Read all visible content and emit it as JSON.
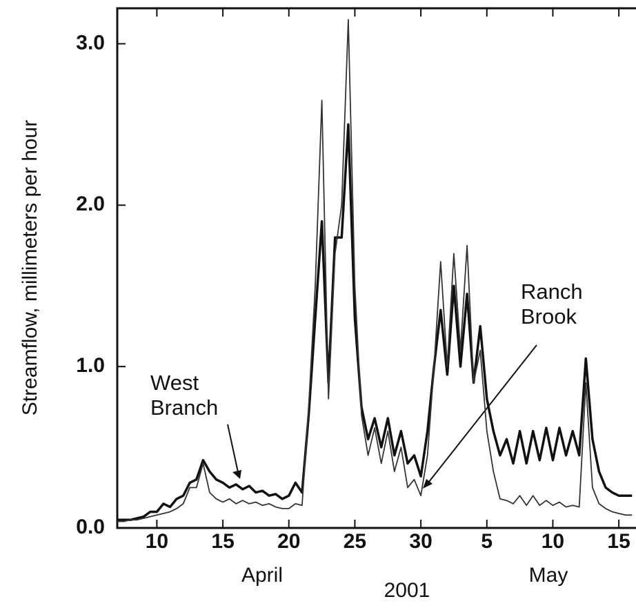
{
  "chart_data": {
    "type": "line",
    "y_label": "Streamflow, millimeters per hour",
    "x_group_labels": [
      "April",
      "May"
    ],
    "x_year_label": "2001",
    "x": [
      7,
      7.5,
      8,
      8.5,
      9,
      9.5,
      10,
      10.5,
      11,
      11.5,
      12,
      12.5,
      13,
      13.5,
      14,
      14.5,
      15,
      15.5,
      16,
      16.5,
      17,
      17.5,
      18,
      18.5,
      19,
      19.5,
      20,
      20.5,
      21,
      21.5,
      22,
      22.5,
      23,
      23.5,
      24,
      24.5,
      25,
      25.5,
      26,
      26.5,
      27,
      27.5,
      28,
      28.5,
      29,
      29.5,
      30,
      30.5,
      31,
      31.5,
      32,
      32.5,
      33,
      33.5,
      34,
      34.5,
      35,
      35.5,
      36,
      36.5,
      37,
      37.5,
      38,
      38.5,
      39,
      39.5,
      40,
      40.5,
      41,
      41.5,
      42,
      42.5,
      43,
      43.5,
      44,
      44.5,
      45,
      45.5,
      46
    ],
    "series": [
      {
        "name": "West Branch",
        "color": "#111111",
        "values": [
          0.05,
          0.05,
          0.05,
          0.06,
          0.07,
          0.1,
          0.1,
          0.15,
          0.13,
          0.18,
          0.2,
          0.28,
          0.3,
          0.42,
          0.35,
          0.3,
          0.28,
          0.25,
          0.27,
          0.24,
          0.26,
          0.22,
          0.23,
          0.2,
          0.21,
          0.18,
          0.2,
          0.28,
          0.22,
          0.7,
          1.3,
          1.9,
          0.9,
          1.8,
          1.8,
          2.5,
          1.3,
          0.75,
          0.55,
          0.68,
          0.5,
          0.68,
          0.45,
          0.6,
          0.4,
          0.45,
          0.32,
          0.6,
          1.0,
          1.35,
          0.95,
          1.5,
          1.0,
          1.45,
          0.9,
          1.25,
          0.8,
          0.6,
          0.45,
          0.55,
          0.4,
          0.6,
          0.4,
          0.6,
          0.42,
          0.62,
          0.42,
          0.62,
          0.45,
          0.6,
          0.45,
          1.05,
          0.55,
          0.35,
          0.25,
          0.22,
          0.2,
          0.2,
          0.2
        ]
      },
      {
        "name": "Ranch Brook",
        "color": "#333333",
        "values": [
          0.04,
          0.04,
          0.05,
          0.05,
          0.06,
          0.07,
          0.08,
          0.09,
          0.1,
          0.12,
          0.15,
          0.25,
          0.25,
          0.4,
          0.22,
          0.18,
          0.16,
          0.18,
          0.15,
          0.17,
          0.15,
          0.16,
          0.14,
          0.15,
          0.13,
          0.12,
          0.12,
          0.15,
          0.14,
          0.75,
          1.5,
          2.65,
          0.8,
          1.7,
          2.0,
          3.15,
          1.5,
          0.7,
          0.45,
          0.62,
          0.4,
          0.6,
          0.35,
          0.5,
          0.25,
          0.3,
          0.2,
          0.45,
          1.0,
          1.65,
          1.0,
          1.7,
          1.1,
          1.75,
          0.9,
          1.1,
          0.6,
          0.35,
          0.18,
          0.17,
          0.15,
          0.2,
          0.14,
          0.2,
          0.14,
          0.17,
          0.14,
          0.16,
          0.13,
          0.14,
          0.13,
          0.9,
          0.25,
          0.15,
          0.12,
          0.1,
          0.09,
          0.08,
          0.08
        ]
      }
    ],
    "xlim": [
      7,
      46.3
    ],
    "xticks": [
      10,
      15,
      20,
      25,
      30,
      {
        "value": 35,
        "label": "5"
      },
      {
        "value": 40,
        "label": "10"
      },
      {
        "value": 45,
        "label": "15"
      }
    ],
    "ylim": [
      0,
      3.22
    ],
    "yticks": [
      {
        "value": 0,
        "label": "0.0"
      },
      {
        "value": 1,
        "label": "1.0"
      },
      {
        "value": 2,
        "label": "2.0"
      },
      {
        "value": 3,
        "label": "3.0"
      }
    ]
  }
}
